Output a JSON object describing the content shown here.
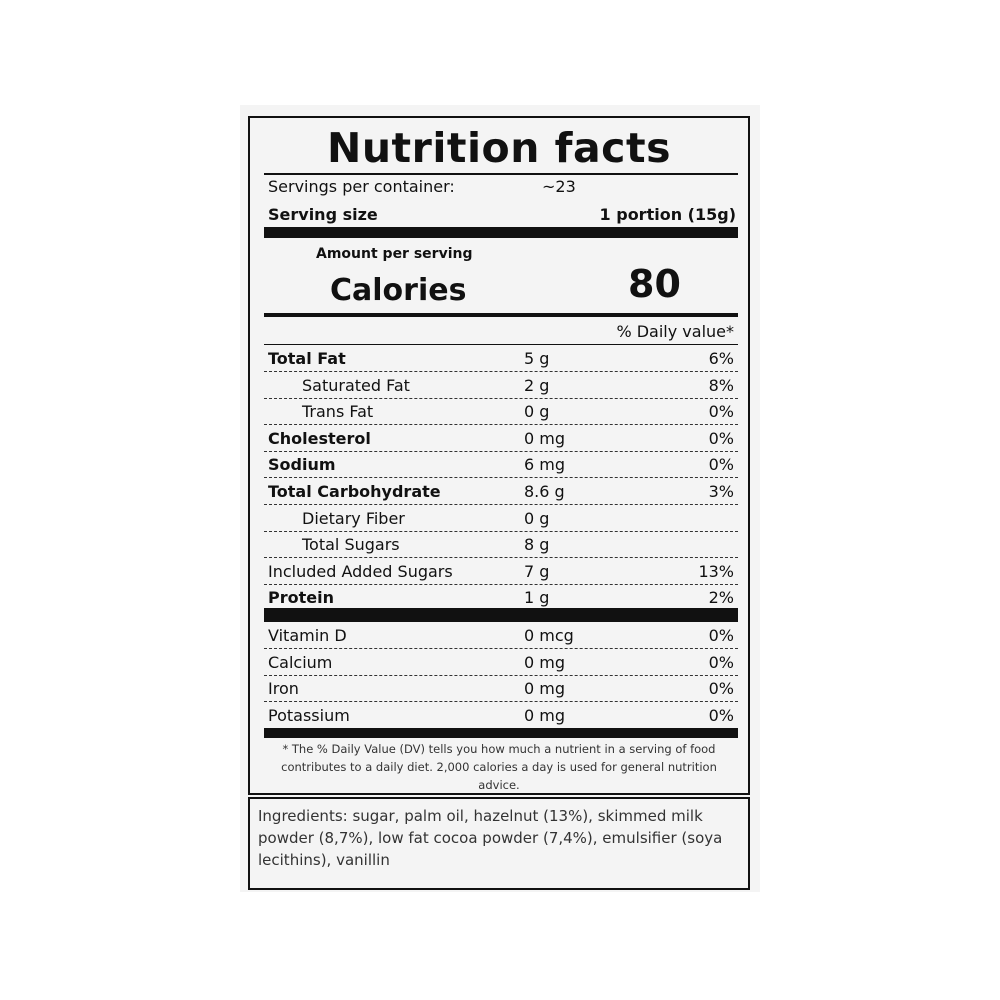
{
  "title": "Nutrition facts",
  "servings_label": "Servings per container:",
  "servings_value": "~23",
  "serving_size_label": "Serving size",
  "serving_size_value": "1 portion (15g)",
  "amount_per_serving": "Amount per serving",
  "calories_label": "Calories",
  "calories_value": "80",
  "daily_value_header": "% Daily value*",
  "nutrients": [
    {
      "name": "Total Fat",
      "amount": "5 g",
      "dv": "6%",
      "bold": true,
      "indent": false
    },
    {
      "name": "Saturated Fat",
      "amount": "2 g",
      "dv": "8%",
      "bold": false,
      "indent": true
    },
    {
      "name": "Trans Fat",
      "amount": "0 g",
      "dv": "0%",
      "bold": false,
      "indent": true
    },
    {
      "name": "Cholesterol",
      "amount": "0 mg",
      "dv": "0%",
      "bold": true,
      "indent": false
    },
    {
      "name": "Sodium",
      "amount": "6 mg",
      "dv": "0%",
      "bold": true,
      "indent": false
    },
    {
      "name": "Total Carbohydrate",
      "amount": "8.6 g",
      "dv": "3%",
      "bold": true,
      "indent": false
    },
    {
      "name": "Dietary Fiber",
      "amount": "0 g",
      "dv": "",
      "bold": false,
      "indent": true
    },
    {
      "name": "Total Sugars",
      "amount": "8 g",
      "dv": "",
      "bold": false,
      "indent": true
    },
    {
      "name": "Included Added Sugars",
      "amount": "7 g",
      "dv": "13%",
      "bold": false,
      "indent": false
    },
    {
      "name": "Protein",
      "amount": "1 g",
      "dv": "2%",
      "bold": true,
      "indent": false
    }
  ],
  "vitamins": [
    {
      "name": "Vitamin D",
      "amount": "0 mcg",
      "dv": "0%"
    },
    {
      "name": "Calcium",
      "amount": "0 mg",
      "dv": "0%"
    },
    {
      "name": "Iron",
      "amount": "0 mg",
      "dv": "0%"
    },
    {
      "name": "Potassium",
      "amount": "0 mg",
      "dv": "0%"
    }
  ],
  "footnote": "* The % Daily Value (DV) tells you how much a nutrient in a serving of food contributes to a daily diet. 2,000 calories a day is used for general nutrition advice.",
  "ingredients": "Ingredients: sugar, palm oil, hazelnut (13%), skimmed milk powder (8,7%), low fat cocoa powder (7,4%), emulsifier (soya lecithins), vanillin"
}
